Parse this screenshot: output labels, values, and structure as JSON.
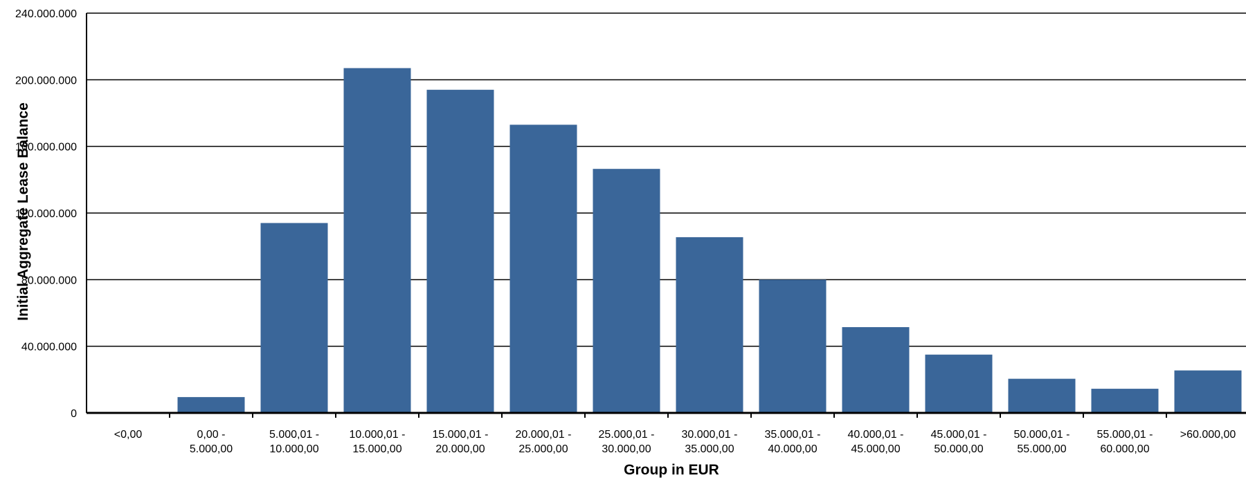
{
  "chart_data": {
    "type": "bar",
    "title": "",
    "xlabel": "Group in EUR",
    "ylabel": "Initial Aggregate Lease Balance",
    "ylim": [
      0,
      240000000
    ],
    "yticks": [
      0,
      40000000,
      80000000,
      120000000,
      160000000,
      200000000,
      240000000
    ],
    "ytick_labels": [
      "0",
      "40.000.000",
      "80.000.000",
      "120.000.000",
      "160.000.000",
      "200.000.000",
      "240.000.000"
    ],
    "grid": true,
    "bar_color": "#3A6699",
    "categories": [
      [
        "<0,00"
      ],
      [
        "0,00 -",
        "5.000,00"
      ],
      [
        "5.000,01 -",
        "10.000,00"
      ],
      [
        "10.000,01 -",
        "15.000,00"
      ],
      [
        "15.000,01 -",
        "20.000,00"
      ],
      [
        "20.000,01 -",
        "25.000,00"
      ],
      [
        "25.000,01 -",
        "30.000,00"
      ],
      [
        "30.000,01 -",
        "35.000,00"
      ],
      [
        "35.000,01 -",
        "40.000,00"
      ],
      [
        "40.000,01 -",
        "45.000,00"
      ],
      [
        "45.000,01 -",
        "50.000,00"
      ],
      [
        "50.000,01 -",
        "55.000,00"
      ],
      [
        "55.000,01 -",
        "60.000,00"
      ],
      [
        ">60.000,00"
      ]
    ],
    "values": [
      0,
      9500000,
      114000000,
      207000000,
      194000000,
      173000000,
      146500000,
      105500000,
      80000000,
      51500000,
      35000000,
      20500000,
      14500000,
      25500000
    ]
  }
}
